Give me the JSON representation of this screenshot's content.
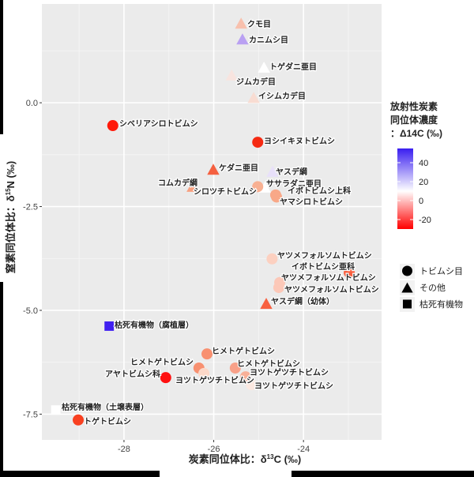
{
  "chart_data": {
    "type": "scatter",
    "title": "",
    "xlabel": "炭素同位体比：δ13C (‰)",
    "xlabel_parts": {
      "main": "炭素同位体比：δ",
      "sup": "13",
      "rest": "C (‰)"
    },
    "ylabel": "窒素同位体比：δ15N (‰)",
    "ylabel_parts": {
      "main": "窒素同位体比：δ",
      "sup": "15",
      "rest": "N (‰)"
    },
    "xlim": [
      -29.83,
      -22.26
    ],
    "ylim": [
      -8.12,
      2.38
    ],
    "xticks": [
      -28,
      -26,
      -24
    ],
    "xtick_labels": [
      "-28",
      "-26",
      "-24"
    ],
    "yticks": [
      0,
      -2.5,
      -5,
      -7.5
    ],
    "ytick_labels": [
      "0.0",
      "-2.5",
      "-5.0",
      "-7.5"
    ],
    "grid": true,
    "points": [
      {
        "label": "クモ目",
        "x": -25.39,
        "y": 1.9,
        "shape": "triangle",
        "c14": 5,
        "color": "#f8c0ad"
      },
      {
        "label": "カニムシ目",
        "x": -25.36,
        "y": 1.52,
        "shape": "triangle",
        "c14": 35,
        "color": "#b9a0f2"
      },
      {
        "label": "トゲダニ亜目",
        "x": -24.88,
        "y": 0.84,
        "shape": "triangle",
        "c14": 12,
        "color": "#ffffff"
      },
      {
        "label": "ジムカデ目",
        "x": -25.6,
        "y": 0.65,
        "shape": "triangle",
        "c14": 9,
        "color": "#f8e4df"
      },
      {
        "label": "イシムカデ目",
        "x": -25.11,
        "y": 0.11,
        "shape": "triangle",
        "c14": 7,
        "color": "#f8dcd2"
      },
      {
        "label": "シベリアシロトビムシ",
        "x": -28.25,
        "y": -0.55,
        "shape": "circle",
        "c14": -30,
        "color": "#ff1a0a"
      },
      {
        "label": "ヨシイキヌトビムシ",
        "x": -25.02,
        "y": -0.95,
        "shape": "circle",
        "c14": -27,
        "color": "#f52a12"
      },
      {
        "label": "ケダニ亜目",
        "x": -26.01,
        "y": -1.62,
        "shape": "triangle",
        "c14": -15,
        "color": "#f56040"
      },
      {
        "label": "コムカデ綱",
        "x": -26.47,
        "y": -2.03,
        "shape": "triangle",
        "c14": -5,
        "color": "#f8a080"
      },
      {
        "label": "ヤスデ綱",
        "x": -24.69,
        "y": -1.67,
        "shape": "triangle",
        "c14": 18,
        "color": "#e8e0fa"
      },
      {
        "label": "ササラダニ亜目",
        "x": -24.86,
        "y": -2.05,
        "shape": "triangle",
        "c14": 12,
        "color": "#ffffff"
      },
      {
        "label": "シロツチトビムシ",
        "x": -25.02,
        "y": -2.02,
        "shape": "circle",
        "c14": -4,
        "color": "#f8b092"
      },
      {
        "label": "イボトビムシ上科",
        "x": -24.62,
        "y": -2.22,
        "shape": "circle",
        "c14": -6,
        "color": "#f8a888"
      },
      {
        "label": "ヤマシロトビムシ",
        "x": -24.6,
        "y": -2.27,
        "shape": "circle",
        "c14": -6,
        "color": "#f8a888"
      },
      {
        "label": "ヤツメフォルソムトビムシ",
        "x": -24.7,
        "y": -3.76,
        "shape": "circle",
        "c14": 2,
        "color": "#fcd0c0"
      },
      {
        "label": "イボトビムシ亜科",
        "x": -22.98,
        "y": -4.09,
        "shape": "circle",
        "c14": -17,
        "color": "#f86040"
      },
      {
        "label": "ヤツメフォルソムトビムシ",
        "x": -24.53,
        "y": -4.33,
        "shape": "circle",
        "c14": 1,
        "color": "#fcc8b8"
      },
      {
        "label": "ヤツメフォルソムトビムシ",
        "x": -24.55,
        "y": -4.45,
        "shape": "circle",
        "c14": 1,
        "color": "#fcc8b8"
      },
      {
        "label": "ヤスデ綱（幼体）",
        "x": -24.83,
        "y": -4.85,
        "shape": "triangle",
        "c14": -17,
        "color": "#f86040"
      },
      {
        "label": "枯死有機物（腐植層）",
        "x": -28.33,
        "y": -5.38,
        "shape": "square",
        "c14": 55,
        "color": "#4020f0"
      },
      {
        "label": "ヒメトゲトビムシ",
        "x": -26.15,
        "y": -6.05,
        "shape": "circle",
        "c14": -10,
        "color": "#f89070"
      },
      {
        "label": "ヒメトゲトビムシ",
        "x": -26.33,
        "y": -6.39,
        "shape": "circle",
        "c14": -10,
        "color": "#f89070"
      },
      {
        "label": "ヨツトゲツチトビムシ",
        "x": -26.22,
        "y": -6.52,
        "shape": "circle",
        "c14": 3,
        "color": "#fcd8c8"
      },
      {
        "label": "アヤトビムシ科",
        "x": -27.07,
        "y": -6.62,
        "shape": "circle",
        "c14": -32,
        "color": "#ff1010"
      },
      {
        "label": "ヒメトゲトビムシ",
        "x": -25.52,
        "y": -6.39,
        "shape": "circle",
        "c14": -6,
        "color": "#f8a088"
      },
      {
        "label": "ヨツトゲツチトビムシ",
        "x": -25.29,
        "y": -6.6,
        "shape": "circle",
        "c14": -4,
        "color": "#f8b098"
      },
      {
        "label": "ヨツトゲツチトビムシ",
        "x": -25.16,
        "y": -6.79,
        "shape": "circle",
        "c14": 7,
        "color": "#fce8e0"
      },
      {
        "label": "枯死有機物（土壌表層）",
        "x": -29.52,
        "y": -7.4,
        "shape": "square",
        "c14": 12,
        "color": "#ffffff"
      },
      {
        "label": "トゲトビムシ",
        "x": -29.02,
        "y": -7.64,
        "shape": "circle",
        "c14": -22,
        "color": "#f84020"
      }
    ],
    "colorbar": {
      "title_lines": [
        "放射性炭素",
        "同位体濃度",
        "：Δ14C (‰)"
      ],
      "ticks": [
        40,
        20,
        0,
        -20
      ],
      "tick_labels": [
        "40",
        "20",
        "0",
        "-20"
      ],
      "range": [
        -30,
        55
      ],
      "low_color": "#ff0000",
      "mid_color": "#ffffff",
      "high_color": "#3a1ef0"
    },
    "shape_legend": [
      {
        "shape": "circle",
        "label": "トビムシ目"
      },
      {
        "shape": "triangle",
        "label": "その他"
      },
      {
        "shape": "square",
        "label": "枯死有機物"
      }
    ]
  }
}
